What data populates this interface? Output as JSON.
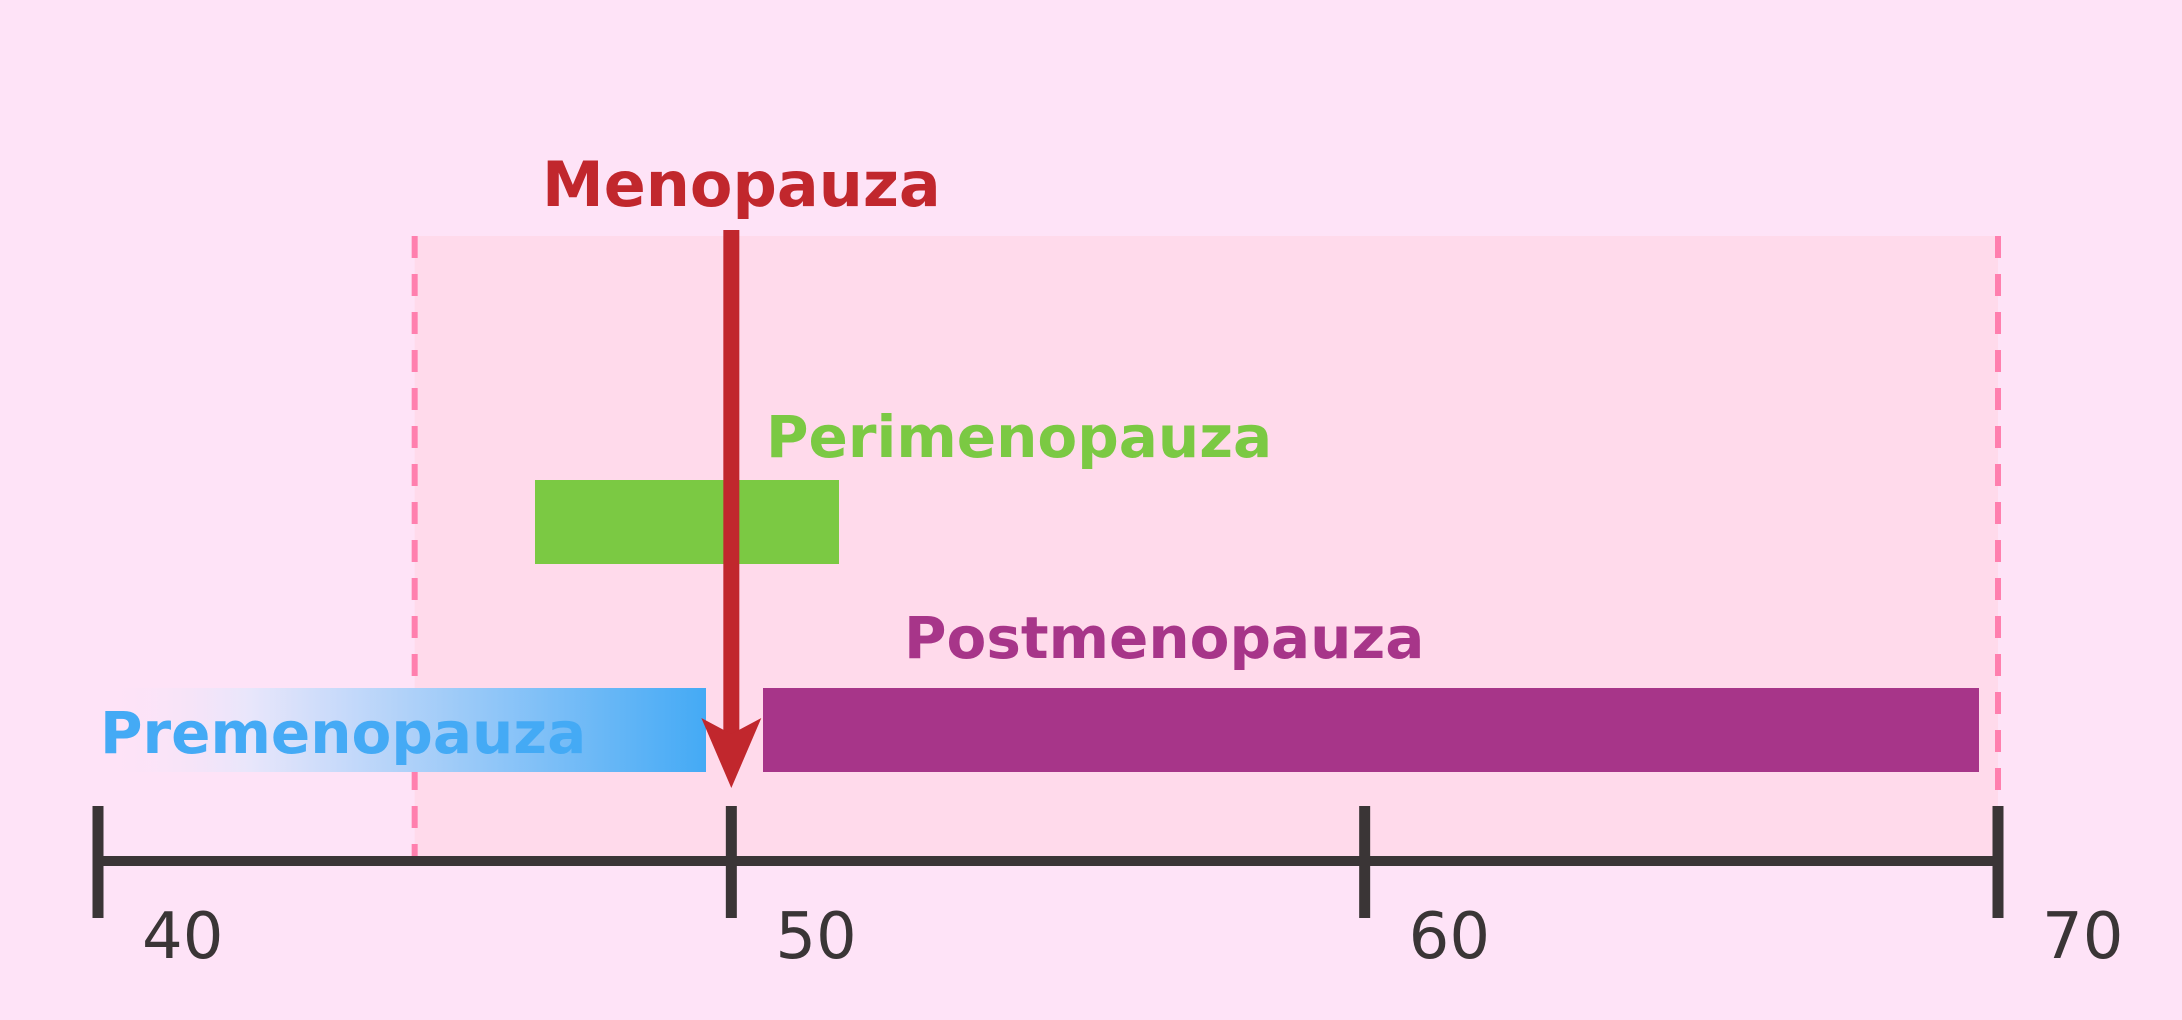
{
  "timeline": {
    "min": 40,
    "max": 70,
    "ticks": [
      {
        "value": 40,
        "label": "40"
      },
      {
        "value": 50,
        "label": "50"
      },
      {
        "value": 60,
        "label": "60"
      },
      {
        "value": 70,
        "label": "70"
      }
    ],
    "window": {
      "start": 45,
      "end": 70
    }
  },
  "phases": {
    "premenopause": {
      "label": "Premenopauza",
      "start": 40,
      "end": 49.6,
      "color": "#44aaf5"
    },
    "perimenopause": {
      "label": "Perimenopauza",
      "start": 46.9,
      "end": 51.7,
      "color": "#7bc943"
    },
    "postmenopause": {
      "label": "Postmenopauza",
      "start": 50.5,
      "end": 69.7,
      "color": "#a73589"
    }
  },
  "menopause": {
    "label": "Menopauza",
    "value": 50,
    "color": "#c1272d"
  },
  "colors": {
    "background": "#fee3f7",
    "window_fill": "#ffdaeb",
    "window_border": "#ff7fae",
    "axis": "#3a3536"
  }
}
